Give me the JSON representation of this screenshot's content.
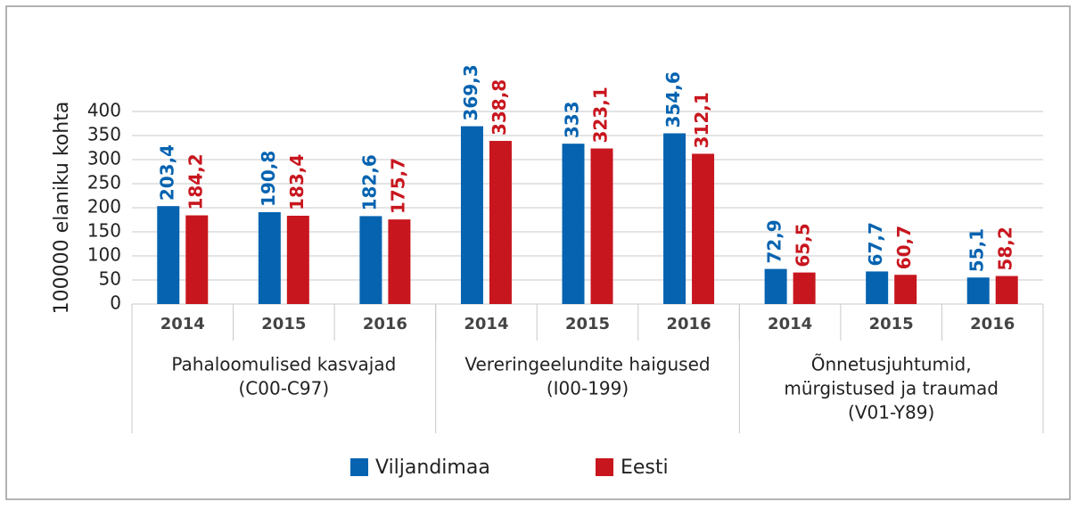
{
  "chart_data": {
    "type": "bar",
    "y_label": "100000 elaniku kohta",
    "categories": [
      "2014",
      "2015",
      "2016",
      "2014",
      "2015",
      "2016",
      "2014",
      "2015",
      "2016"
    ],
    "groups": [
      [
        "Pahaloomulised kasvajad",
        "(C00-C97)"
      ],
      [
        "Vereringeelundite haigused",
        "(I00-199)"
      ],
      [
        "Õnnetusjuhtumid,",
        "mürgistused ja traumad",
        "(V01-Y89)"
      ]
    ],
    "series": [
      {
        "name": "Viljandimaa",
        "color": "#0563b0",
        "values": [
          203.4,
          190.8,
          182.6,
          369.3,
          333,
          354.6,
          72.9,
          67.7,
          55.1
        ],
        "value_labels": [
          "203,4",
          "190,8",
          "182,6",
          "369,3",
          "333",
          "354,6",
          "72,9",
          "67,7",
          "55,1"
        ]
      },
      {
        "name": "Eesti",
        "color": "#c8161e",
        "values": [
          184.2,
          183.4,
          175.7,
          338.8,
          323.1,
          312.1,
          65.5,
          60.7,
          58.2
        ],
        "value_labels": [
          "184,2",
          "183,4",
          "175,7",
          "338,8",
          "323,1",
          "312,1",
          "65,5",
          "60,7",
          "58,2"
        ]
      }
    ],
    "ylim": [
      0,
      400
    ],
    "yticks": [
      0,
      50,
      100,
      150,
      200,
      250,
      300,
      350,
      400
    ],
    "grid": true,
    "legend": "bottom"
  }
}
